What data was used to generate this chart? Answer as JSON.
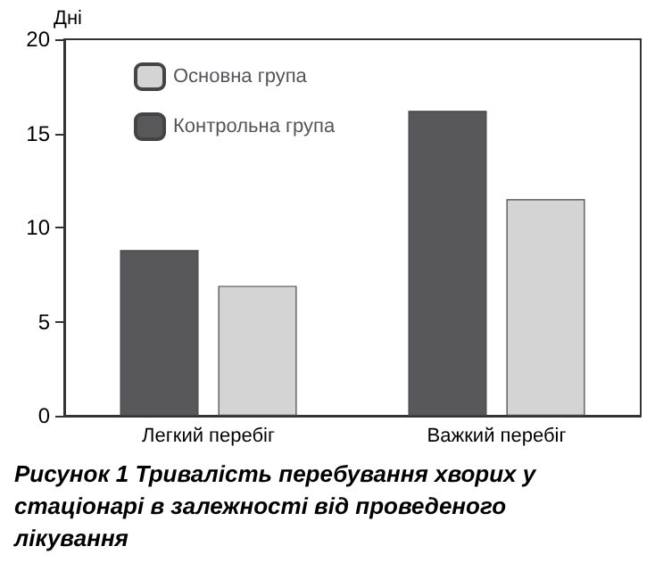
{
  "chart_data": {
    "type": "bar",
    "title": "Рисунок 1 Тривалість перебування хворих у стаціонарі в залежності від проведеного лікування",
    "ylabel": "Дні",
    "categories": [
      "Легкий перебіг",
      "Важкий перебіг"
    ],
    "series": [
      {
        "name": "Контрольна група",
        "color": "#58585a",
        "values": [
          8.8,
          16.2
        ]
      },
      {
        "name": "Основна група",
        "color": "#d4d4d4",
        "values": [
          6.9,
          11.5
        ]
      }
    ],
    "ylim": [
      0,
      20
    ],
    "yticks": [
      0,
      5,
      10,
      15,
      20
    ],
    "grid": false,
    "legend": "top left"
  }
}
